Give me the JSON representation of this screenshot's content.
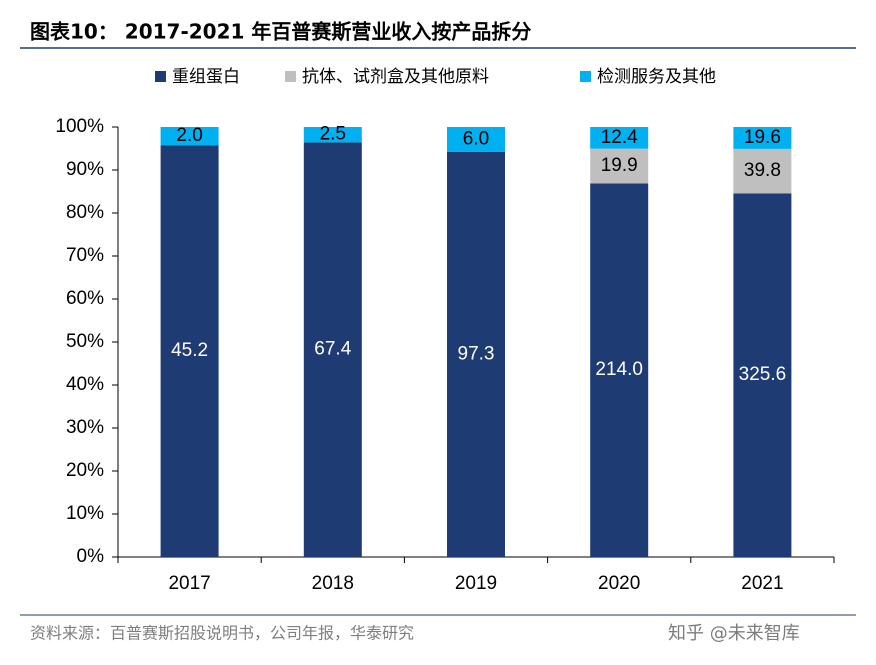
{
  "chart_data": {
    "type": "bar",
    "stacking": "percent",
    "title": "图表10：  2017-2021 年百普赛斯营业收入按产品拆分",
    "categories": [
      "2017",
      "2018",
      "2019",
      "2020",
      "2021"
    ],
    "series": [
      {
        "name": "重组蛋白",
        "color": "#1f3b73",
        "values": [
          45.2,
          67.4,
          97.3,
          214.0,
          325.6
        ],
        "value_labels": [
          "45.2",
          "67.4",
          "97.3",
          "214.0",
          "325.6"
        ]
      },
      {
        "name": "抗体、试剂盒及其他原料",
        "color": "#bfbfbf",
        "values": [
          null,
          null,
          null,
          19.9,
          39.8
        ],
        "value_labels": [
          null,
          null,
          null,
          "19.9",
          "39.8"
        ]
      },
      {
        "name": "检测服务及其他",
        "color": "#00b0f0",
        "values": [
          2.0,
          2.5,
          6.0,
          12.4,
          19.6
        ],
        "value_labels": [
          "2.0",
          "2.5",
          "6.0",
          "12.4",
          "19.6"
        ]
      }
    ],
    "ylim": [
      0,
      100
    ],
    "yticks": [
      {
        "value": 0,
        "label": "0%"
      },
      {
        "value": 10,
        "label": "10%"
      },
      {
        "value": 20,
        "label": "20%"
      },
      {
        "value": 30,
        "label": "30%"
      },
      {
        "value": 40,
        "label": "40%"
      },
      {
        "value": 50,
        "label": "50%"
      },
      {
        "value": 60,
        "label": "60%"
      },
      {
        "value": 70,
        "label": "70%"
      },
      {
        "value": 80,
        "label": "80%"
      },
      {
        "value": 90,
        "label": "90%"
      },
      {
        "value": 100,
        "label": "100%"
      }
    ],
    "legend": "top",
    "source": "资料来源：百普赛斯招股说明书，公司年报，华泰研究",
    "watermark": "知乎 @未来智库"
  }
}
